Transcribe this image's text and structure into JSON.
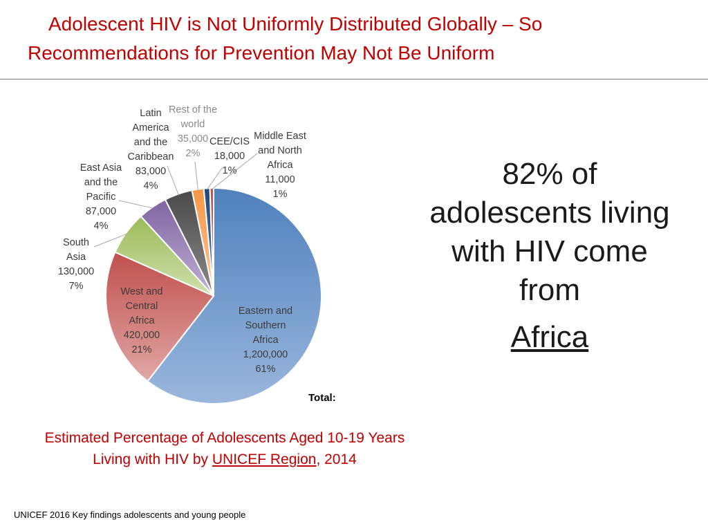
{
  "title": {
    "line1": "Adolescent HIV is Not Uniformly Distributed Globally –  So",
    "line2": "Recommendations for Prevention May Not Be Uniform"
  },
  "chart_data": {
    "type": "pie",
    "title": "",
    "total_label": "Total:",
    "slices": [
      {
        "label_lines": [
          "Eastern and",
          "Southern",
          "Africa"
        ],
        "value": 1200000,
        "value_text": "1,200,000",
        "percent": 61,
        "percent_text": "61%",
        "color": "#4f81bd",
        "color_light": "#9ab6dd"
      },
      {
        "label_lines": [
          "West and",
          "Central",
          "Africa"
        ],
        "value": 420000,
        "value_text": "420,000",
        "percent": 21,
        "percent_text": "21%",
        "color": "#c0504d",
        "color_light": "#e1a7a5"
      },
      {
        "label_lines": [
          "South",
          "Asia"
        ],
        "value": 130000,
        "value_text": "130,000",
        "percent": 7,
        "percent_text": "7%",
        "color": "#9bbb59",
        "color_light": "#cfe0ad"
      },
      {
        "label_lines": [
          "East Asia",
          "and the",
          "Pacific"
        ],
        "value": 87000,
        "value_text": "87,000",
        "percent": 4,
        "percent_text": "4%",
        "color": "#8064a2",
        "color_light": "#bfb0d3"
      },
      {
        "label_lines": [
          "Latin",
          "America",
          "and the",
          "Caribbean"
        ],
        "value": 83000,
        "value_text": "83,000",
        "percent": 4,
        "percent_text": "4%",
        "color": "#4a4a4a",
        "color_light": "#8a8a8a"
      },
      {
        "label_lines": [
          "Rest of the",
          "world"
        ],
        "value": 35000,
        "value_text": "35,000",
        "percent": 2,
        "percent_text": "2%",
        "color": "#f79646",
        "color_light": "#fbc79a"
      },
      {
        "label_lines": [
          "CEE/CIS"
        ],
        "value": 18000,
        "value_text": "18,000",
        "percent": 1,
        "percent_text": "1%",
        "color": "#1f497d",
        "color_light": "#5b7fae"
      },
      {
        "label_lines": [
          "Middle East",
          "and North",
          "Africa"
        ],
        "value": 11000,
        "value_text": "11,000",
        "percent": 1,
        "percent_text": "1%",
        "color": "#c0504d",
        "color_light": "#d98a88"
      }
    ]
  },
  "callout": {
    "lines": [
      "82% of",
      "adolescents living",
      "with HIV come",
      "from"
    ],
    "emphasis": "Africa"
  },
  "caption": {
    "line1": "Estimated Percentage of Adolescents Aged 10-19 Years",
    "line2_prefix": "Living with HIV by ",
    "line2_link": "UNICEF Region",
    "line2_suffix": ", 2014"
  },
  "source": "UNICEF 2016 Key findings adolescents and young people"
}
